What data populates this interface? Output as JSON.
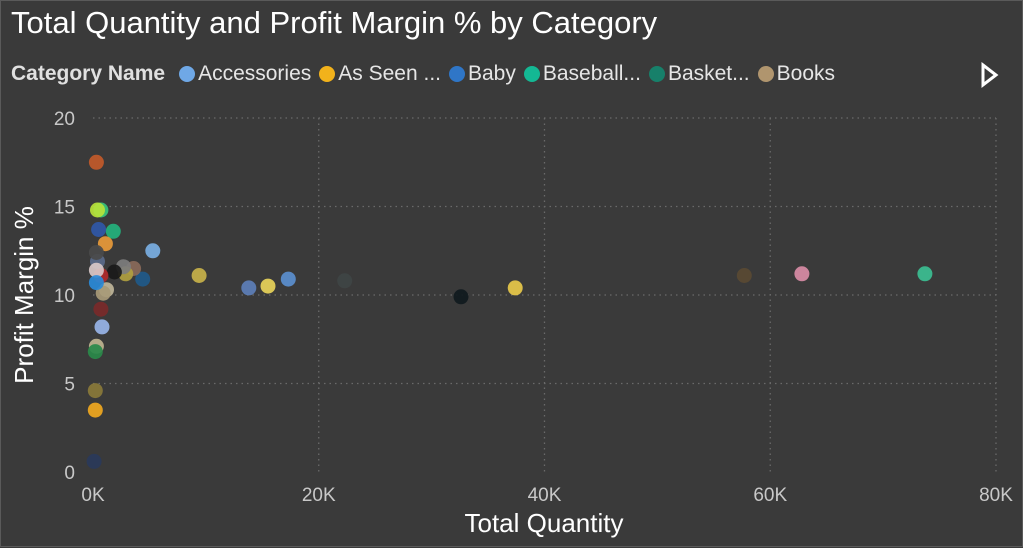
{
  "chart_data": {
    "type": "scatter",
    "title": "Total Quantity and Profit Margin % by Category",
    "xlabel": "Total Quantity",
    "ylabel": "Profit Margin %",
    "xlim": [
      0,
      80000
    ],
    "ylim": [
      0,
      20
    ],
    "x_ticks": [
      "0K",
      "20K",
      "40K",
      "60K",
      "80K"
    ],
    "y_ticks": [
      "0",
      "5",
      "10",
      "15",
      "20"
    ],
    "grid": "dotted",
    "legend": {
      "title": "Category Name",
      "placement": "top",
      "items": [
        {
          "label": "Accessories",
          "color": "#6fa8e6"
        },
        {
          "label": "As Seen ...",
          "color": "#f2b21b"
        },
        {
          "label": "Baby",
          "color": "#2f76c7"
        },
        {
          "label": "Baseball...",
          "color": "#14b894"
        },
        {
          "label": "Basket...",
          "color": "#17806a"
        },
        {
          "label": "Books",
          "color": "#b0956e"
        }
      ]
    },
    "points": [
      {
        "x": 73700,
        "y": 11.2,
        "color": "#3cbf93"
      },
      {
        "x": 62800,
        "y": 11.2,
        "color": "#d98ca6"
      },
      {
        "x": 57700,
        "y": 11.1,
        "color": "#5a4a33"
      },
      {
        "x": 37400,
        "y": 10.4,
        "color": "#e8c94a"
      },
      {
        "x": 32600,
        "y": 9.9,
        "color": "#101a1e"
      },
      {
        "x": 22300,
        "y": 10.8,
        "color": "#3f4545"
      },
      {
        "x": 17300,
        "y": 10.9,
        "color": "#5b8fcf"
      },
      {
        "x": 15500,
        "y": 10.5,
        "color": "#e8d45a"
      },
      {
        "x": 13800,
        "y": 10.4,
        "color": "#5d7fb8"
      },
      {
        "x": 9400,
        "y": 11.1,
        "color": "#c8b24a"
      },
      {
        "x": 5300,
        "y": 12.5,
        "color": "#7aafe3"
      },
      {
        "x": 4400,
        "y": 10.9,
        "color": "#1f5a8a"
      },
      {
        "x": 3600,
        "y": 11.5,
        "color": "#8a6a5a"
      },
      {
        "x": 2900,
        "y": 11.2,
        "color": "#b0a040"
      },
      {
        "x": 2700,
        "y": 11.6,
        "color": "#7d7d7d"
      },
      {
        "x": 1800,
        "y": 13.6,
        "color": "#24b27d"
      },
      {
        "x": 1900,
        "y": 11.3,
        "color": "#1a1a1a"
      },
      {
        "x": 1100,
        "y": 12.9,
        "color": "#e89a3a"
      },
      {
        "x": 1200,
        "y": 10.3,
        "color": "#c0b69a"
      },
      {
        "x": 900,
        "y": 10.1,
        "color": "#a89a78"
      },
      {
        "x": 700,
        "y": 14.8,
        "color": "#3ac47a"
      },
      {
        "x": 400,
        "y": 14.8,
        "color": "#b8e23a"
      },
      {
        "x": 500,
        "y": 13.7,
        "color": "#3058a8"
      },
      {
        "x": 700,
        "y": 11.1,
        "color": "#b02a2a"
      },
      {
        "x": 700,
        "y": 9.2,
        "color": "#7a2a2a"
      },
      {
        "x": 800,
        "y": 8.2,
        "color": "#98b4e8"
      },
      {
        "x": 400,
        "y": 11.9,
        "color": "#5a6a8a"
      },
      {
        "x": 300,
        "y": 11.4,
        "color": "#d8c8c8"
      },
      {
        "x": 300,
        "y": 10.7,
        "color": "#2a8ad8"
      },
      {
        "x": 300,
        "y": 12.4,
        "color": "#4a4a4a"
      },
      {
        "x": 300,
        "y": 17.5,
        "color": "#c25a2a"
      },
      {
        "x": 300,
        "y": 7.1,
        "color": "#c0b490"
      },
      {
        "x": 200,
        "y": 6.8,
        "color": "#2a8a4a"
      },
      {
        "x": 200,
        "y": 4.6,
        "color": "#8a7a3a"
      },
      {
        "x": 200,
        "y": 3.5,
        "color": "#f0a820"
      },
      {
        "x": 100,
        "y": 0.6,
        "color": "#2a3a5a"
      }
    ]
  }
}
